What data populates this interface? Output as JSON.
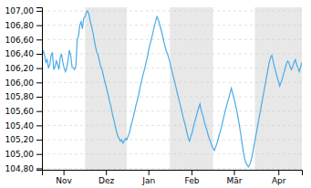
{
  "chart_data": {
    "type": "line",
    "x": [
      0,
      1,
      2,
      3,
      4,
      5,
      6,
      7,
      8,
      9,
      10,
      11,
      12,
      13,
      14,
      15,
      16,
      17,
      18,
      19,
      20,
      21,
      22,
      23,
      24,
      25,
      26,
      27,
      28,
      29,
      30,
      31,
      32,
      33,
      34,
      35,
      36,
      37,
      38,
      39,
      40,
      41,
      42,
      43,
      44,
      45,
      46,
      47,
      48,
      49,
      50,
      51,
      52,
      53,
      54,
      55,
      56,
      57,
      58,
      59,
      60,
      61,
      62,
      63,
      64,
      65,
      66,
      67,
      68,
      69,
      70,
      71,
      72,
      73,
      74,
      75,
      76,
      77,
      78,
      79,
      80,
      81,
      82,
      83,
      84,
      85,
      86,
      87,
      88,
      89,
      90,
      91,
      92,
      93,
      94,
      95,
      96,
      97,
      98,
      99,
      100,
      101,
      102,
      103,
      104,
      105,
      106,
      107,
      108,
      109,
      110,
      111,
      112,
      113,
      114,
      115,
      116,
      117,
      118,
      119,
      120,
      121,
      122,
      123,
      124,
      125,
      126,
      127,
      128,
      129,
      130,
      131,
      132,
      133,
      134,
      135,
      136,
      137,
      138,
      139,
      140,
      141,
      142,
      143,
      144,
      145,
      146,
      147,
      148,
      149,
      150,
      151,
      152,
      153,
      154,
      155,
      156,
      157,
      158,
      159,
      160,
      161,
      162,
      163,
      164,
      165,
      166,
      167,
      168,
      169,
      170,
      171,
      172,
      173,
      174,
      175,
      176,
      177,
      178,
      179,
      180,
      181,
      182,
      183,
      184,
      185,
      186,
      187,
      188,
      189,
      190,
      191,
      192,
      193,
      194,
      195,
      196,
      197,
      198,
      199
    ],
    "values": [
      106.35,
      106.45,
      106.38,
      106.28,
      106.32,
      106.2,
      106.25,
      106.38,
      106.42,
      106.18,
      106.22,
      106.3,
      106.25,
      106.18,
      106.35,
      106.4,
      106.28,
      106.2,
      106.15,
      106.2,
      106.32,
      106.45,
      106.38,
      106.22,
      106.2,
      106.18,
      106.24,
      106.6,
      106.65,
      106.8,
      106.85,
      106.75,
      106.9,
      106.92,
      106.98,
      107.0,
      106.95,
      106.85,
      106.78,
      106.7,
      106.6,
      106.5,
      106.42,
      106.38,
      106.3,
      106.22,
      106.18,
      106.1,
      106.02,
      105.95,
      105.88,
      105.8,
      105.72,
      105.65,
      105.55,
      105.48,
      105.4,
      105.32,
      105.25,
      105.22,
      105.18,
      105.2,
      105.15,
      105.18,
      105.22,
      105.2,
      105.25,
      105.3,
      105.38,
      105.45,
      105.52,
      105.6,
      105.68,
      105.75,
      105.82,
      105.92,
      106.0,
      106.08,
      106.15,
      106.22,
      106.3,
      106.38,
      106.48,
      106.55,
      106.62,
      106.7,
      106.78,
      106.85,
      106.92,
      106.88,
      106.82,
      106.75,
      106.68,
      106.6,
      106.52,
      106.45,
      106.4,
      106.35,
      106.28,
      106.2,
      106.12,
      106.05,
      105.98,
      105.9,
      105.82,
      105.75,
      105.68,
      105.6,
      105.52,
      105.45,
      105.38,
      105.3,
      105.22,
      105.18,
      105.25,
      105.3,
      105.38,
      105.45,
      105.52,
      105.58,
      105.65,
      105.7,
      105.6,
      105.55,
      105.48,
      105.4,
      105.35,
      105.28,
      105.22,
      105.18,
      105.12,
      105.08,
      105.05,
      105.1,
      105.15,
      105.22,
      105.28,
      105.35,
      105.42,
      105.5,
      105.58,
      105.65,
      105.72,
      105.78,
      105.85,
      105.92,
      105.85,
      105.78,
      105.7,
      105.62,
      105.52,
      105.42,
      105.3,
      105.18,
      105.05,
      104.95,
      104.88,
      104.85,
      104.82,
      104.85,
      104.9,
      104.98,
      105.08,
      105.18,
      105.28,
      105.38,
      105.48,
      105.58,
      105.68,
      105.78,
      105.88,
      105.98,
      106.08,
      106.18,
      106.28,
      106.35,
      106.38,
      106.3,
      106.22,
      106.15,
      106.08,
      106.02,
      105.95,
      106.0,
      106.05,
      106.12,
      106.18,
      106.25,
      106.3,
      106.28,
      106.22,
      106.18,
      106.22,
      106.28,
      106.32,
      106.25,
      106.2,
      106.15,
      106.22,
      106.28
    ],
    "color": "#4aabe8",
    "bands": [
      [
        33,
        65
      ],
      [
        98,
        131
      ],
      [
        163,
        199
      ]
    ],
    "xlim": [
      0,
      199
    ],
    "xticks": [
      {
        "value": 16.5,
        "label": "Nov"
      },
      {
        "value": 49,
        "label": "Dez"
      },
      {
        "value": 81.5,
        "label": "Jan"
      },
      {
        "value": 114.5,
        "label": "Feb"
      },
      {
        "value": 147,
        "label": "Mär"
      },
      {
        "value": 181,
        "label": "Apr"
      }
    ],
    "ylim": [
      104.78,
      107.05
    ],
    "yticks": [
      {
        "value": 104.8,
        "label": "104,80"
      },
      {
        "value": 105.0,
        "label": "105,00"
      },
      {
        "value": 105.2,
        "label": "105,20"
      },
      {
        "value": 105.4,
        "label": "105,40"
      },
      {
        "value": 105.6,
        "label": "105,60"
      },
      {
        "value": 105.8,
        "label": "105,80"
      },
      {
        "value": 106.0,
        "label": "106,00"
      },
      {
        "value": 106.2,
        "label": "106,20"
      },
      {
        "value": 106.4,
        "label": "106,40"
      },
      {
        "value": 106.6,
        "label": "106,60"
      },
      {
        "value": 106.8,
        "label": "106,80"
      },
      {
        "value": 107.0,
        "label": "107,00"
      }
    ],
    "grid": true
  }
}
